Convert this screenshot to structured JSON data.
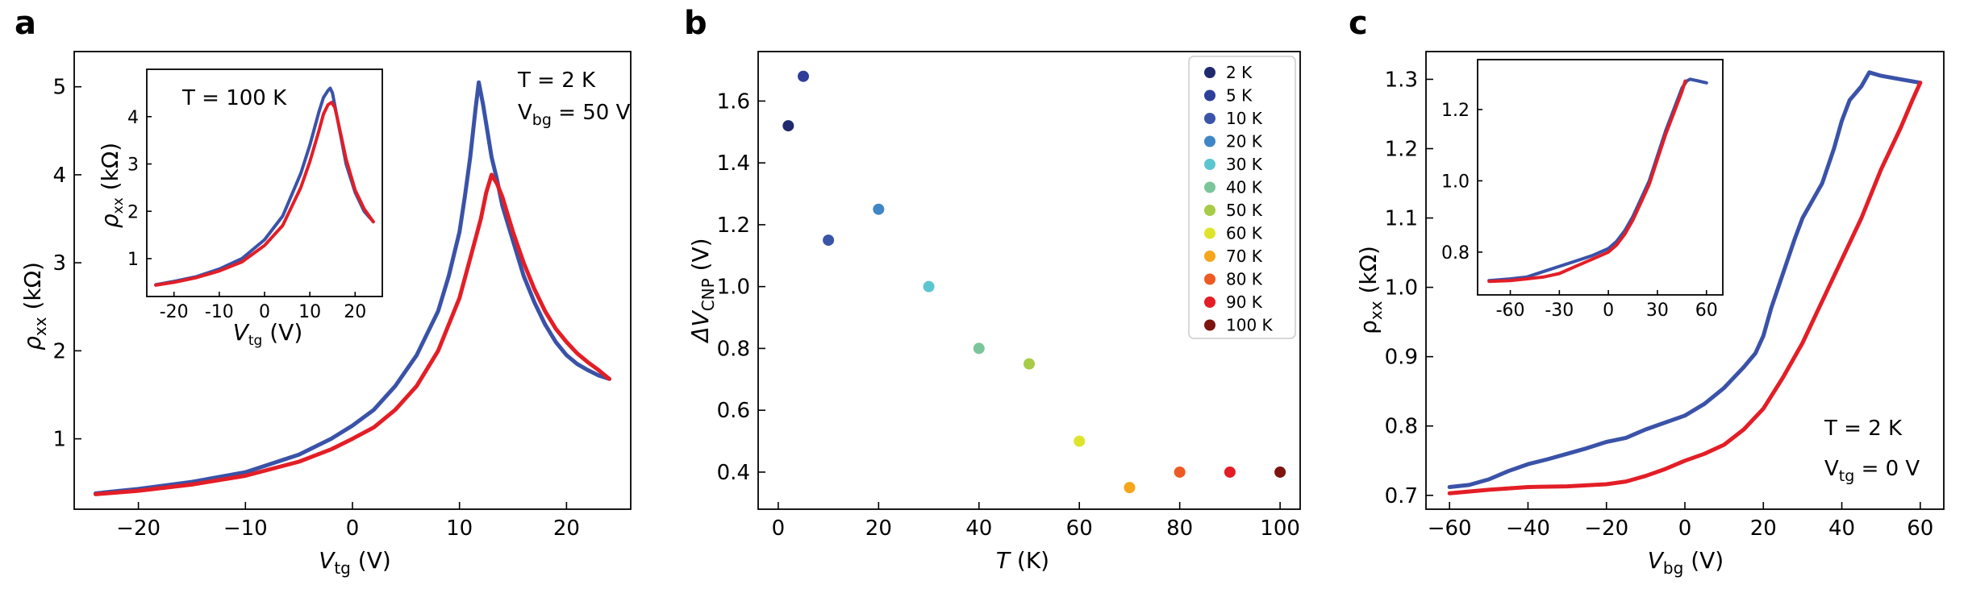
{
  "panels": [
    {
      "letter": "a",
      "xlabel": {
        "main": "V",
        "sub": "tg",
        "unit": " (V)"
      },
      "ylabel": {
        "main": "ρ",
        "sub": "xx",
        "unit": " (kΩ)"
      },
      "xlim": [
        -26,
        26
      ],
      "ylim": [
        0.2,
        5.4
      ],
      "xticks": [
        -20,
        -10,
        0,
        10,
        20
      ],
      "xtick_labels": [
        "−20",
        "−10",
        "0",
        "10",
        "20"
      ],
      "yticks": [
        1,
        2,
        3,
        4,
        5
      ],
      "ytick_labels": [
        "1",
        "2",
        "3",
        "4",
        "5"
      ],
      "annotations": [
        {
          "text": "T = 2 K"
        },
        {
          "main": "V",
          "sub": "bg",
          "tail": " = 50 V"
        }
      ],
      "inset": {
        "xlabel": {
          "main": "V",
          "sub": "tg",
          "unit": " (V)"
        },
        "ylabel": {
          "main": "ρ",
          "sub": "xx",
          "unit": " (kΩ)"
        },
        "annotation": "T = 100 K",
        "xlim": [
          -26,
          26
        ],
        "ylim": [
          0.2,
          5.0
        ],
        "xticks": [
          -20,
          -10,
          0,
          10,
          20
        ],
        "xtick_labels": [
          "-20",
          "-10",
          "0",
          "10",
          "20"
        ],
        "yticks": [
          1,
          2,
          3,
          4
        ],
        "ytick_labels": [
          "1",
          "2",
          "3",
          "4"
        ]
      }
    },
    {
      "letter": "b",
      "xlabel": {
        "main": "T",
        "unit": " (K)"
      },
      "ylabel": {
        "prefix": "ΔV",
        "sub": "CNP",
        "unit": " (V)"
      },
      "xlim": [
        -4,
        104
      ],
      "ylim": [
        0.28,
        1.76
      ],
      "xticks": [
        0,
        20,
        40,
        60,
        80,
        100
      ],
      "xtick_labels": [
        "0",
        "20",
        "40",
        "60",
        "80",
        "100"
      ],
      "yticks": [
        0.4,
        0.6,
        0.8,
        1.0,
        1.2,
        1.4,
        1.6
      ],
      "ytick_labels": [
        "0.4",
        "0.6",
        "0.8",
        "1.0",
        "1.2",
        "1.4",
        "1.6"
      ]
    },
    {
      "letter": "c",
      "xlabel": {
        "main": "V",
        "sub": "bg",
        "unit": " (V)"
      },
      "ylabel": {
        "main": "ρ",
        "sub": "xx",
        "unit": " (kΩ)"
      },
      "xlim": [
        -66,
        66
      ],
      "ylim": [
        0.68,
        1.34
      ],
      "xticks": [
        -60,
        -40,
        -20,
        0,
        20,
        40,
        60
      ],
      "xtick_labels": [
        "−60",
        "−40",
        "−20",
        "0",
        "20",
        "40",
        "60"
      ],
      "yticks": [
        0.7,
        0.8,
        0.9,
        1.0,
        1.1,
        1.2,
        1.3
      ],
      "ytick_labels": [
        "0.7",
        "0.8",
        "0.9",
        "1.0",
        "1.1",
        "1.2",
        "1.3"
      ],
      "annotations": [
        {
          "text": "T = 2 K"
        },
        {
          "main": "V",
          "sub": "tg",
          "tail": " = 0 V"
        }
      ],
      "inset": {
        "xlim": [
          -80,
          70
        ],
        "ylim": [
          0.68,
          1.34
        ],
        "xticks": [
          -60,
          -30,
          0,
          30,
          60
        ],
        "xtick_labels": [
          "-60",
          "-30",
          "0",
          "30",
          "60"
        ],
        "yticks": [
          0.8,
          1.0,
          1.2
        ],
        "ytick_labels": [
          "0.8",
          "1.0",
          "1.2"
        ]
      }
    }
  ],
  "chart_data": [
    {
      "type": "line",
      "panel": "a",
      "xlabel": "Vtg (V)",
      "ylabel": "ρxx (kΩ)",
      "xlim": [
        -26,
        26
      ],
      "ylim": [
        0.2,
        5.4
      ],
      "series": [
        {
          "color": "#3a52a8",
          "x": [
            -24,
            -20,
            -15,
            -10,
            -5,
            -2,
            0,
            2,
            4,
            6,
            8,
            9,
            10,
            10.5,
            11,
            11.5,
            11.8,
            12.2,
            12.6,
            13,
            13.5,
            14,
            15,
            16,
            17,
            18,
            19,
            20,
            21,
            22,
            23,
            24
          ],
          "y": [
            0.38,
            0.43,
            0.51,
            0.62,
            0.82,
            1.0,
            1.15,
            1.33,
            1.6,
            1.95,
            2.45,
            2.85,
            3.35,
            3.75,
            4.2,
            4.75,
            5.05,
            4.8,
            4.5,
            4.2,
            3.95,
            3.65,
            3.25,
            2.85,
            2.55,
            2.3,
            2.1,
            1.95,
            1.85,
            1.78,
            1.72,
            1.68
          ]
        },
        {
          "color": "#e31e26",
          "x": [
            -24,
            -20,
            -15,
            -10,
            -5,
            -2,
            0,
            2,
            4,
            6,
            8,
            10,
            11,
            12,
            12.5,
            13,
            13.5,
            14,
            14.5,
            15,
            16,
            17,
            18,
            19,
            20,
            21,
            22,
            23,
            24
          ],
          "y": [
            0.37,
            0.41,
            0.48,
            0.58,
            0.74,
            0.88,
            1.0,
            1.13,
            1.33,
            1.6,
            2.0,
            2.6,
            3.05,
            3.5,
            3.8,
            4.0,
            3.9,
            3.75,
            3.55,
            3.35,
            3.0,
            2.7,
            2.45,
            2.25,
            2.1,
            1.97,
            1.87,
            1.78,
            1.68
          ]
        }
      ]
    },
    {
      "type": "line",
      "panel": "a-inset",
      "xlabel": "Vtg (V)",
      "ylabel": "ρxx (kΩ)",
      "xlim": [
        -26,
        26
      ],
      "ylim": [
        0.2,
        5.0
      ],
      "series": [
        {
          "color": "#3a52a8",
          "x": [
            -24,
            -20,
            -15,
            -10,
            -5,
            0,
            4,
            8,
            10,
            12,
            13,
            14,
            14.5,
            15,
            16,
            17,
            18,
            20,
            22,
            24
          ],
          "y": [
            0.45,
            0.52,
            0.62,
            0.78,
            1.0,
            1.4,
            1.9,
            2.8,
            3.4,
            4.1,
            4.4,
            4.55,
            4.6,
            4.5,
            4.0,
            3.5,
            3.0,
            2.4,
            2.0,
            1.78
          ]
        },
        {
          "color": "#e31e26",
          "x": [
            -24,
            -20,
            -15,
            -10,
            -5,
            0,
            4,
            8,
            10,
            12,
            13,
            14,
            14.8,
            15.5,
            16,
            17,
            18,
            20,
            22,
            24
          ],
          "y": [
            0.44,
            0.5,
            0.6,
            0.74,
            0.93,
            1.28,
            1.7,
            2.5,
            3.05,
            3.7,
            4.05,
            4.25,
            4.3,
            4.2,
            4.0,
            3.55,
            3.1,
            2.45,
            2.05,
            1.78
          ]
        }
      ]
    },
    {
      "type": "scatter",
      "panel": "b",
      "xlabel": "T (K)",
      "ylabel": "ΔVCNP (V)",
      "xlim": [
        -4,
        104
      ],
      "ylim": [
        0.28,
        1.76
      ],
      "legend_position": "top-right",
      "points": [
        {
          "label": "2 K",
          "x": 2,
          "y": 1.52,
          "color": "#1f2a6e"
        },
        {
          "label": "5 K",
          "x": 5,
          "y": 1.68,
          "color": "#2e3f99"
        },
        {
          "label": "10 K",
          "x": 10,
          "y": 1.15,
          "color": "#3a55a8"
        },
        {
          "label": "20 K",
          "x": 20,
          "y": 1.25,
          "color": "#3f86c6"
        },
        {
          "label": "30 K",
          "x": 30,
          "y": 1.0,
          "color": "#5cc6d0"
        },
        {
          "label": "40 K",
          "x": 40,
          "y": 0.8,
          "color": "#7cc59a"
        },
        {
          "label": "50 K",
          "x": 50,
          "y": 0.75,
          "color": "#a6cc48"
        },
        {
          "label": "60 K",
          "x": 60,
          "y": 0.5,
          "color": "#dee42c"
        },
        {
          "label": "70 K",
          "x": 70,
          "y": 0.35,
          "color": "#f7a51c"
        },
        {
          "label": "80 K",
          "x": 80,
          "y": 0.4,
          "color": "#ee5a24"
        },
        {
          "label": "90 K",
          "x": 90,
          "y": 0.4,
          "color": "#e31e26"
        },
        {
          "label": "100 K",
          "x": 100,
          "y": 0.4,
          "color": "#7d1410"
        }
      ]
    },
    {
      "type": "line",
      "panel": "c",
      "xlabel": "Vbg (V)",
      "ylabel": "ρxx (kΩ)",
      "xlim": [
        -66,
        66
      ],
      "ylim": [
        0.68,
        1.34
      ],
      "series": [
        {
          "color": "#3a52a8",
          "x": [
            -60,
            -55,
            -50,
            -45,
            -40,
            -35,
            -30,
            -25,
            -20,
            -15,
            -10,
            -5,
            0,
            5,
            10,
            15,
            18,
            20,
            22,
            25,
            28,
            30,
            32,
            35,
            38,
            40,
            42,
            45,
            47,
            50,
            55,
            60
          ],
          "y": [
            0.712,
            0.715,
            0.723,
            0.735,
            0.745,
            0.752,
            0.76,
            0.768,
            0.777,
            0.783,
            0.795,
            0.805,
            0.815,
            0.832,
            0.855,
            0.885,
            0.905,
            0.93,
            0.97,
            1.02,
            1.07,
            1.1,
            1.12,
            1.15,
            1.2,
            1.24,
            1.27,
            1.29,
            1.31,
            1.305,
            1.3,
            1.295
          ]
        },
        {
          "color": "#e31e26",
          "x": [
            -60,
            -50,
            -40,
            -30,
            -20,
            -15,
            -10,
            -5,
            0,
            5,
            10,
            15,
            20,
            25,
            30,
            35,
            40,
            45,
            50,
            55,
            58,
            60
          ],
          "y": [
            0.703,
            0.708,
            0.712,
            0.713,
            0.716,
            0.72,
            0.728,
            0.738,
            0.75,
            0.76,
            0.773,
            0.795,
            0.825,
            0.87,
            0.92,
            0.98,
            1.04,
            1.1,
            1.17,
            1.23,
            1.27,
            1.295
          ]
        }
      ]
    },
    {
      "type": "line",
      "panel": "c-inset",
      "xlim": [
        -80,
        70
      ],
      "ylim": [
        0.68,
        1.34
      ],
      "series": [
        {
          "color": "#3a52a8",
          "x": [
            -73,
            -60,
            -50,
            -40,
            -30,
            -20,
            -10,
            0,
            5,
            10,
            15,
            20,
            25,
            30,
            35,
            40,
            45,
            48,
            50,
            55,
            60
          ],
          "y": [
            0.72,
            0.725,
            0.73,
            0.745,
            0.76,
            0.775,
            0.79,
            0.81,
            0.83,
            0.86,
            0.9,
            0.95,
            1.0,
            1.07,
            1.14,
            1.2,
            1.26,
            1.28,
            1.285,
            1.28,
            1.275
          ]
        },
        {
          "color": "#e31e26",
          "x": [
            -73,
            -60,
            -50,
            -40,
            -30,
            -20,
            -10,
            0,
            5,
            10,
            15,
            20,
            25,
            30,
            35,
            40,
            45,
            47
          ],
          "y": [
            0.718,
            0.72,
            0.725,
            0.73,
            0.74,
            0.76,
            0.78,
            0.8,
            0.82,
            0.85,
            0.89,
            0.94,
            0.99,
            1.06,
            1.13,
            1.19,
            1.25,
            1.28
          ]
        }
      ]
    }
  ]
}
